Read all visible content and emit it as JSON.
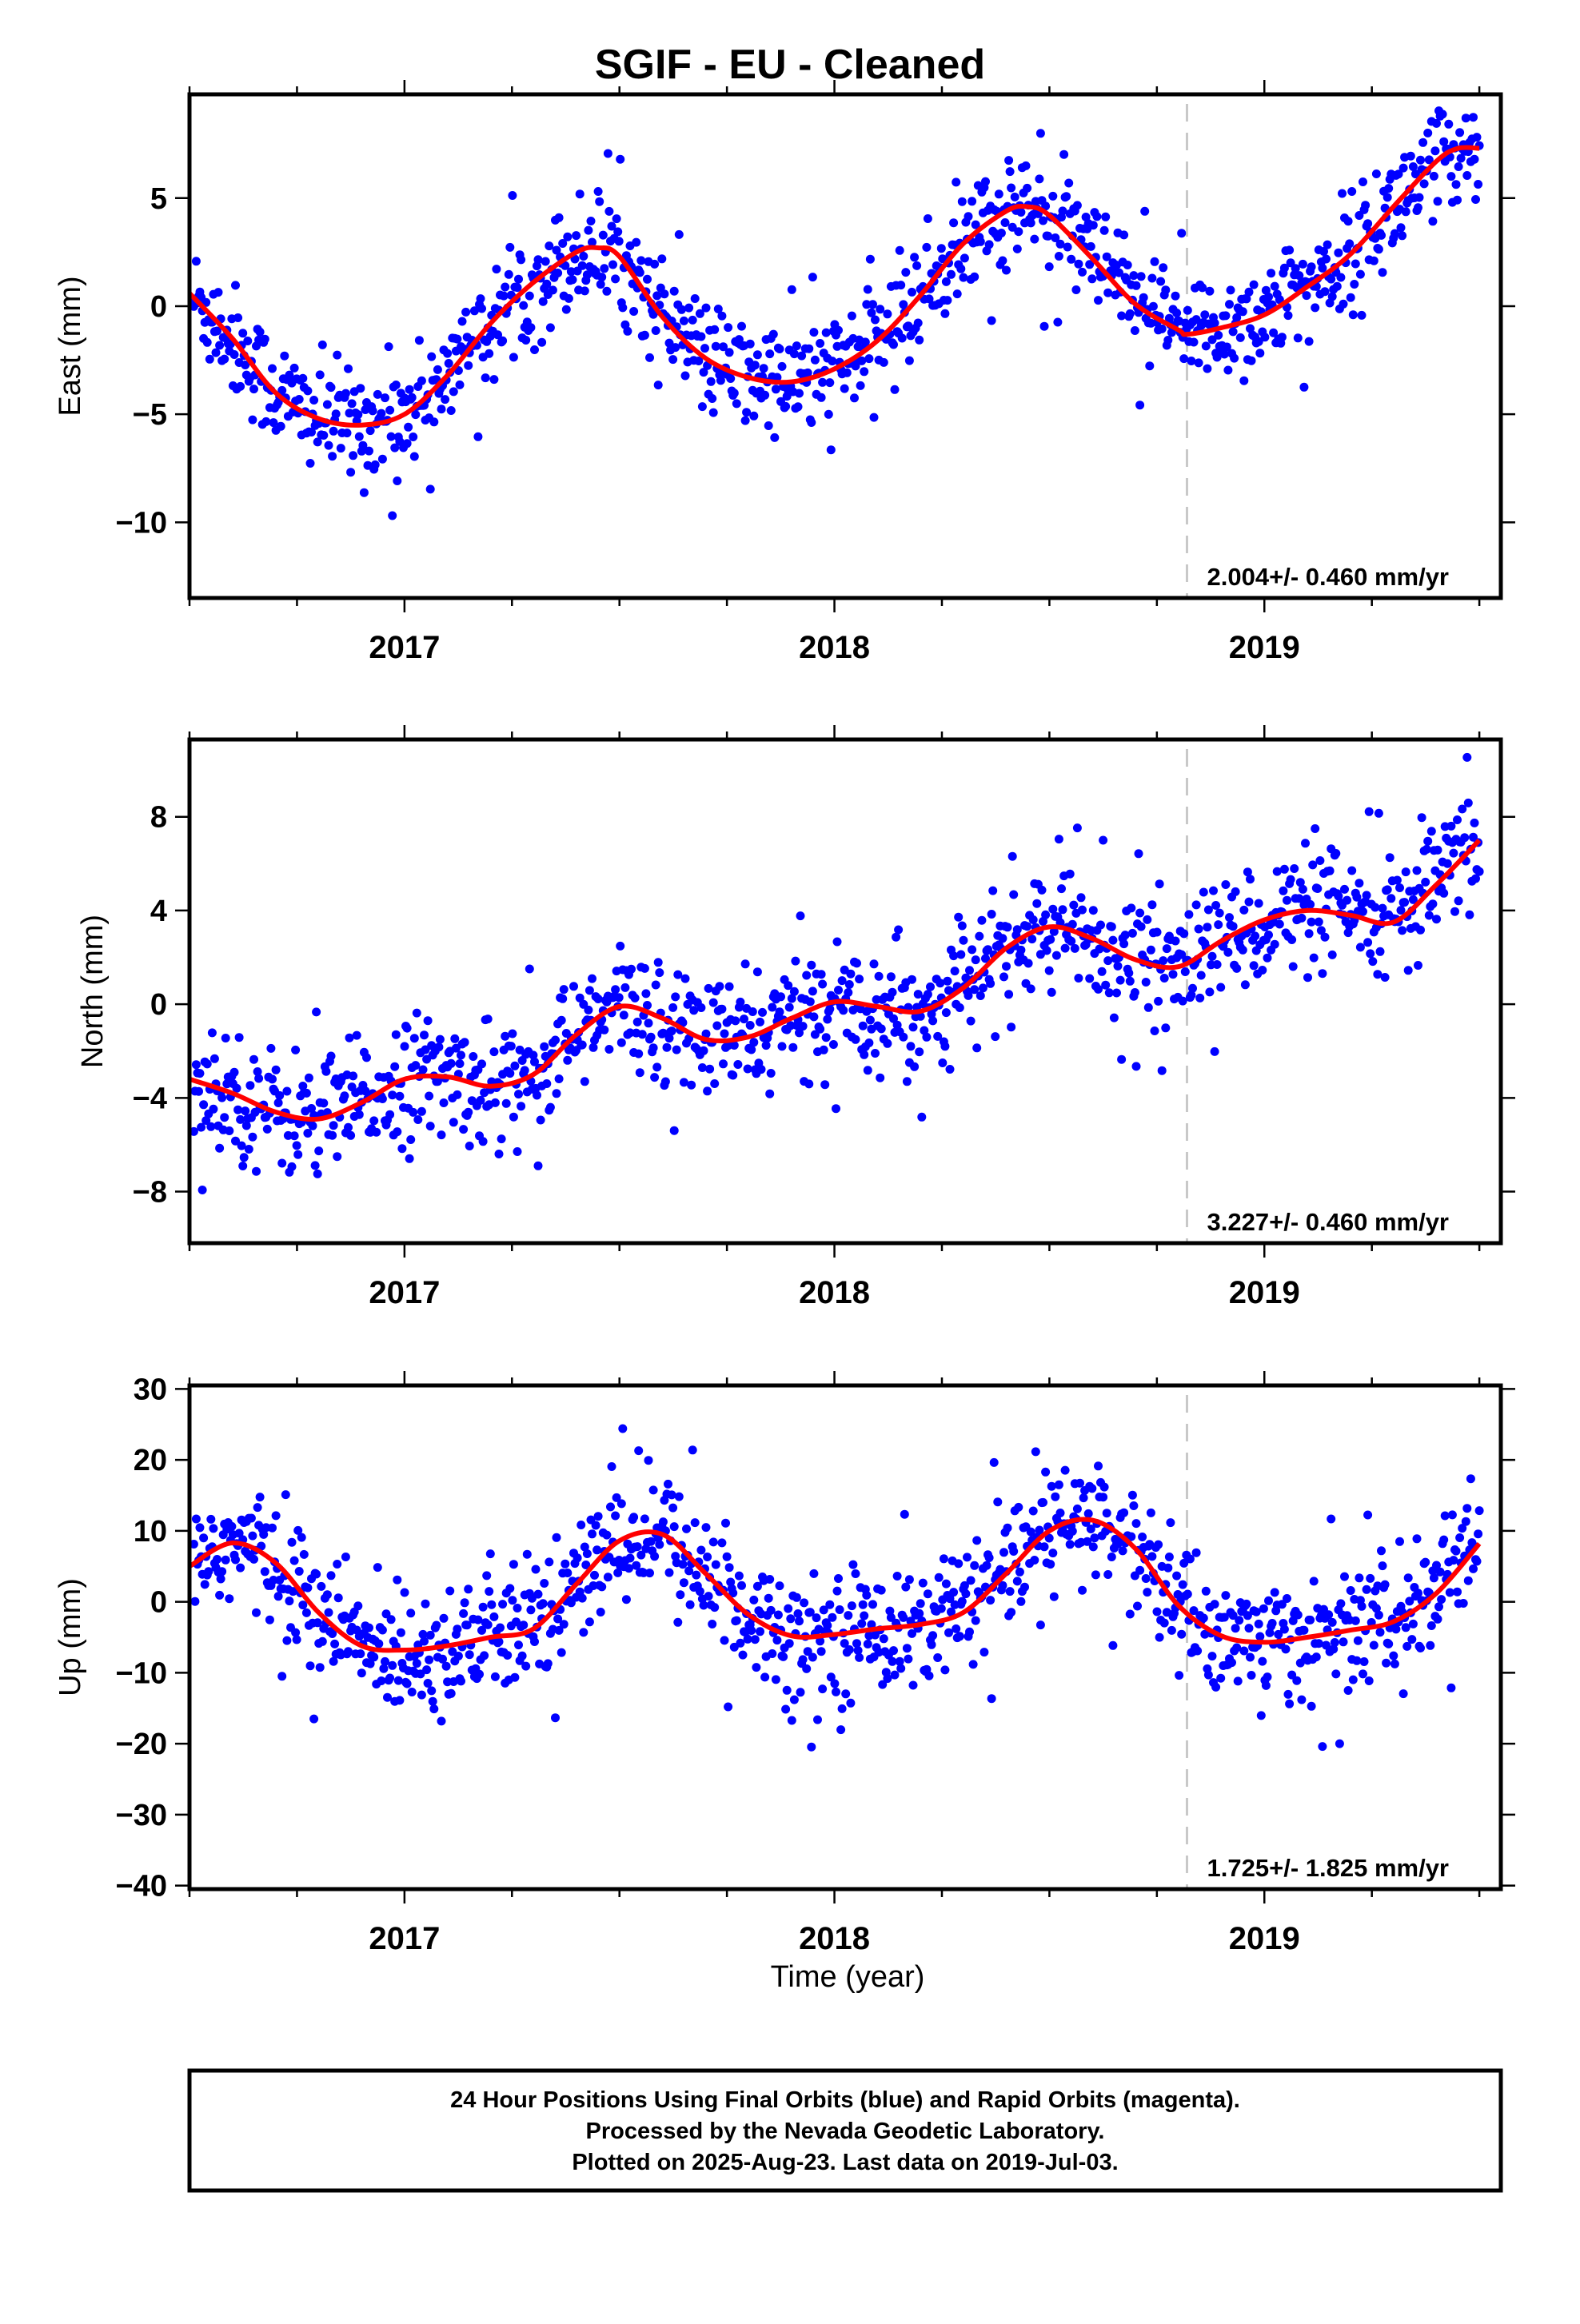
{
  "title": "SGIF  - EU - Cleaned",
  "x_axis_title": "Time (year)",
  "chart_data": [
    {
      "type": "scatter",
      "ylabel": "East (mm)",
      "xlim": [
        2016.5,
        2019.55
      ],
      "ylim": [
        -13.5,
        9.8
      ],
      "x_ticks": [
        2017,
        2018,
        2019
      ],
      "y_ticks": [
        5,
        0,
        -5,
        -10
      ],
      "y_tick_labels": [
        "5",
        "0",
        "−5",
        "−10"
      ],
      "rate_label": "2.004+/- 0.460 mm/yr",
      "rate_mm_per_yr": 2.004,
      "rate_sigma": 0.46,
      "dashed_line_x": 2018.82,
      "series": [
        {
          "kind": "points",
          "color": "#0000ff",
          "description_source": "footer"
        },
        {
          "kind": "fit",
          "color": "#ff0000",
          "x": [
            2016.5,
            2016.6,
            2016.7,
            2016.8,
            2016.9,
            2017.0,
            2017.1,
            2017.2,
            2017.3,
            2017.4,
            2017.45,
            2017.5,
            2017.6,
            2017.7,
            2017.8,
            2017.9,
            2018.0,
            2018.1,
            2018.2,
            2018.3,
            2018.4,
            2018.45,
            2018.5,
            2018.6,
            2018.7,
            2018.8,
            2018.82,
            2018.9,
            2019.0,
            2019.1,
            2019.2,
            2019.3,
            2019.4,
            2019.45,
            2019.5
          ],
          "y": [
            0.6,
            -1.5,
            -4.0,
            -5.2,
            -5.5,
            -5.0,
            -3.2,
            -0.8,
            1.1,
            2.5,
            2.7,
            2.3,
            -0.5,
            -2.4,
            -3.3,
            -3.5,
            -2.9,
            -1.6,
            0.5,
            2.9,
            4.4,
            4.6,
            4.2,
            2.2,
            0.1,
            -1.1,
            -1.3,
            -1.0,
            -0.4,
            0.9,
            2.4,
            4.6,
            6.7,
            7.3,
            7.3
          ]
        }
      ]
    },
    {
      "type": "scatter",
      "ylabel": "North (mm)",
      "xlim": [
        2016.5,
        2019.55
      ],
      "ylim": [
        -10.2,
        11.3
      ],
      "x_ticks": [
        2017,
        2018,
        2019
      ],
      "y_ticks": [
        8,
        4,
        0,
        -4,
        -8
      ],
      "y_tick_labels": [
        "8",
        "4",
        "0",
        "−4",
        "−8"
      ],
      "rate_label": "3.227+/- 0.460 mm/yr",
      "rate_mm_per_yr": 3.227,
      "rate_sigma": 0.46,
      "dashed_line_x": 2018.82,
      "series": [
        {
          "kind": "points",
          "color": "#0000ff"
        },
        {
          "kind": "fit",
          "color": "#ff0000",
          "x": [
            2016.5,
            2016.6,
            2016.7,
            2016.8,
            2016.9,
            2017.0,
            2017.1,
            2017.2,
            2017.3,
            2017.4,
            2017.5,
            2017.6,
            2017.7,
            2017.8,
            2017.9,
            2018.0,
            2018.1,
            2018.2,
            2018.3,
            2018.4,
            2018.5,
            2018.6,
            2018.7,
            2018.8,
            2018.9,
            2019.0,
            2019.1,
            2019.2,
            2019.3,
            2019.4,
            2019.5
          ],
          "y": [
            -3.2,
            -3.8,
            -4.6,
            -4.9,
            -4.2,
            -3.2,
            -3.1,
            -3.5,
            -3.0,
            -1.3,
            -0.1,
            -0.6,
            -1.5,
            -1.4,
            -0.6,
            0.1,
            -0.1,
            -0.3,
            0.7,
            2.4,
            3.3,
            2.8,
            1.9,
            1.6,
            2.7,
            3.6,
            4.0,
            3.8,
            3.5,
            5.1,
            7.0
          ]
        }
      ]
    },
    {
      "type": "scatter",
      "ylabel": "Up (mm)",
      "xlim": [
        2016.5,
        2019.55
      ],
      "ylim": [
        -40.5,
        30.5
      ],
      "x_ticks": [
        2017,
        2018,
        2019
      ],
      "y_ticks": [
        30,
        20,
        10,
        0,
        -10,
        -20,
        -30,
        -40
      ],
      "y_tick_labels": [
        "30",
        "20",
        "10",
        "0",
        "−10",
        "−20",
        "−30",
        "−40"
      ],
      "rate_label": "1.725+/- 1.825 mm/yr",
      "rate_mm_per_yr": 1.725,
      "rate_sigma": 1.825,
      "dashed_line_x": 2018.82,
      "series": [
        {
          "kind": "points",
          "color": "#0000ff"
        },
        {
          "kind": "fit",
          "color": "#ff0000",
          "x": [
            2016.5,
            2016.6,
            2016.7,
            2016.8,
            2016.9,
            2017.0,
            2017.1,
            2017.2,
            2017.3,
            2017.4,
            2017.5,
            2017.6,
            2017.7,
            2017.8,
            2017.9,
            2018.0,
            2018.1,
            2018.2,
            2018.3,
            2018.4,
            2018.5,
            2018.6,
            2018.7,
            2018.8,
            2018.9,
            2019.0,
            2019.1,
            2019.2,
            2019.3,
            2019.4,
            2019.5
          ],
          "y": [
            5.0,
            8.3,
            5.5,
            -1.5,
            -6.2,
            -6.8,
            -6.2,
            -5.0,
            -3.8,
            2.5,
            8.6,
            9.5,
            4.0,
            -1.8,
            -4.8,
            -4.6,
            -3.8,
            -3.2,
            -1.5,
            4.0,
            10.0,
            11.5,
            7.5,
            -0.5,
            -4.8,
            -5.7,
            -5.0,
            -4.0,
            -2.8,
            1.2,
            8.2
          ]
        }
      ]
    }
  ],
  "footer": {
    "line1": "24 Hour Positions Using Final Orbits (blue) and Rapid Orbits (magenta).",
    "line2": "Processed by the Nevada Geodetic Laboratory.",
    "line3": "Plotted on 2025-Aug-23. Last data on 2019-Jul-03."
  }
}
